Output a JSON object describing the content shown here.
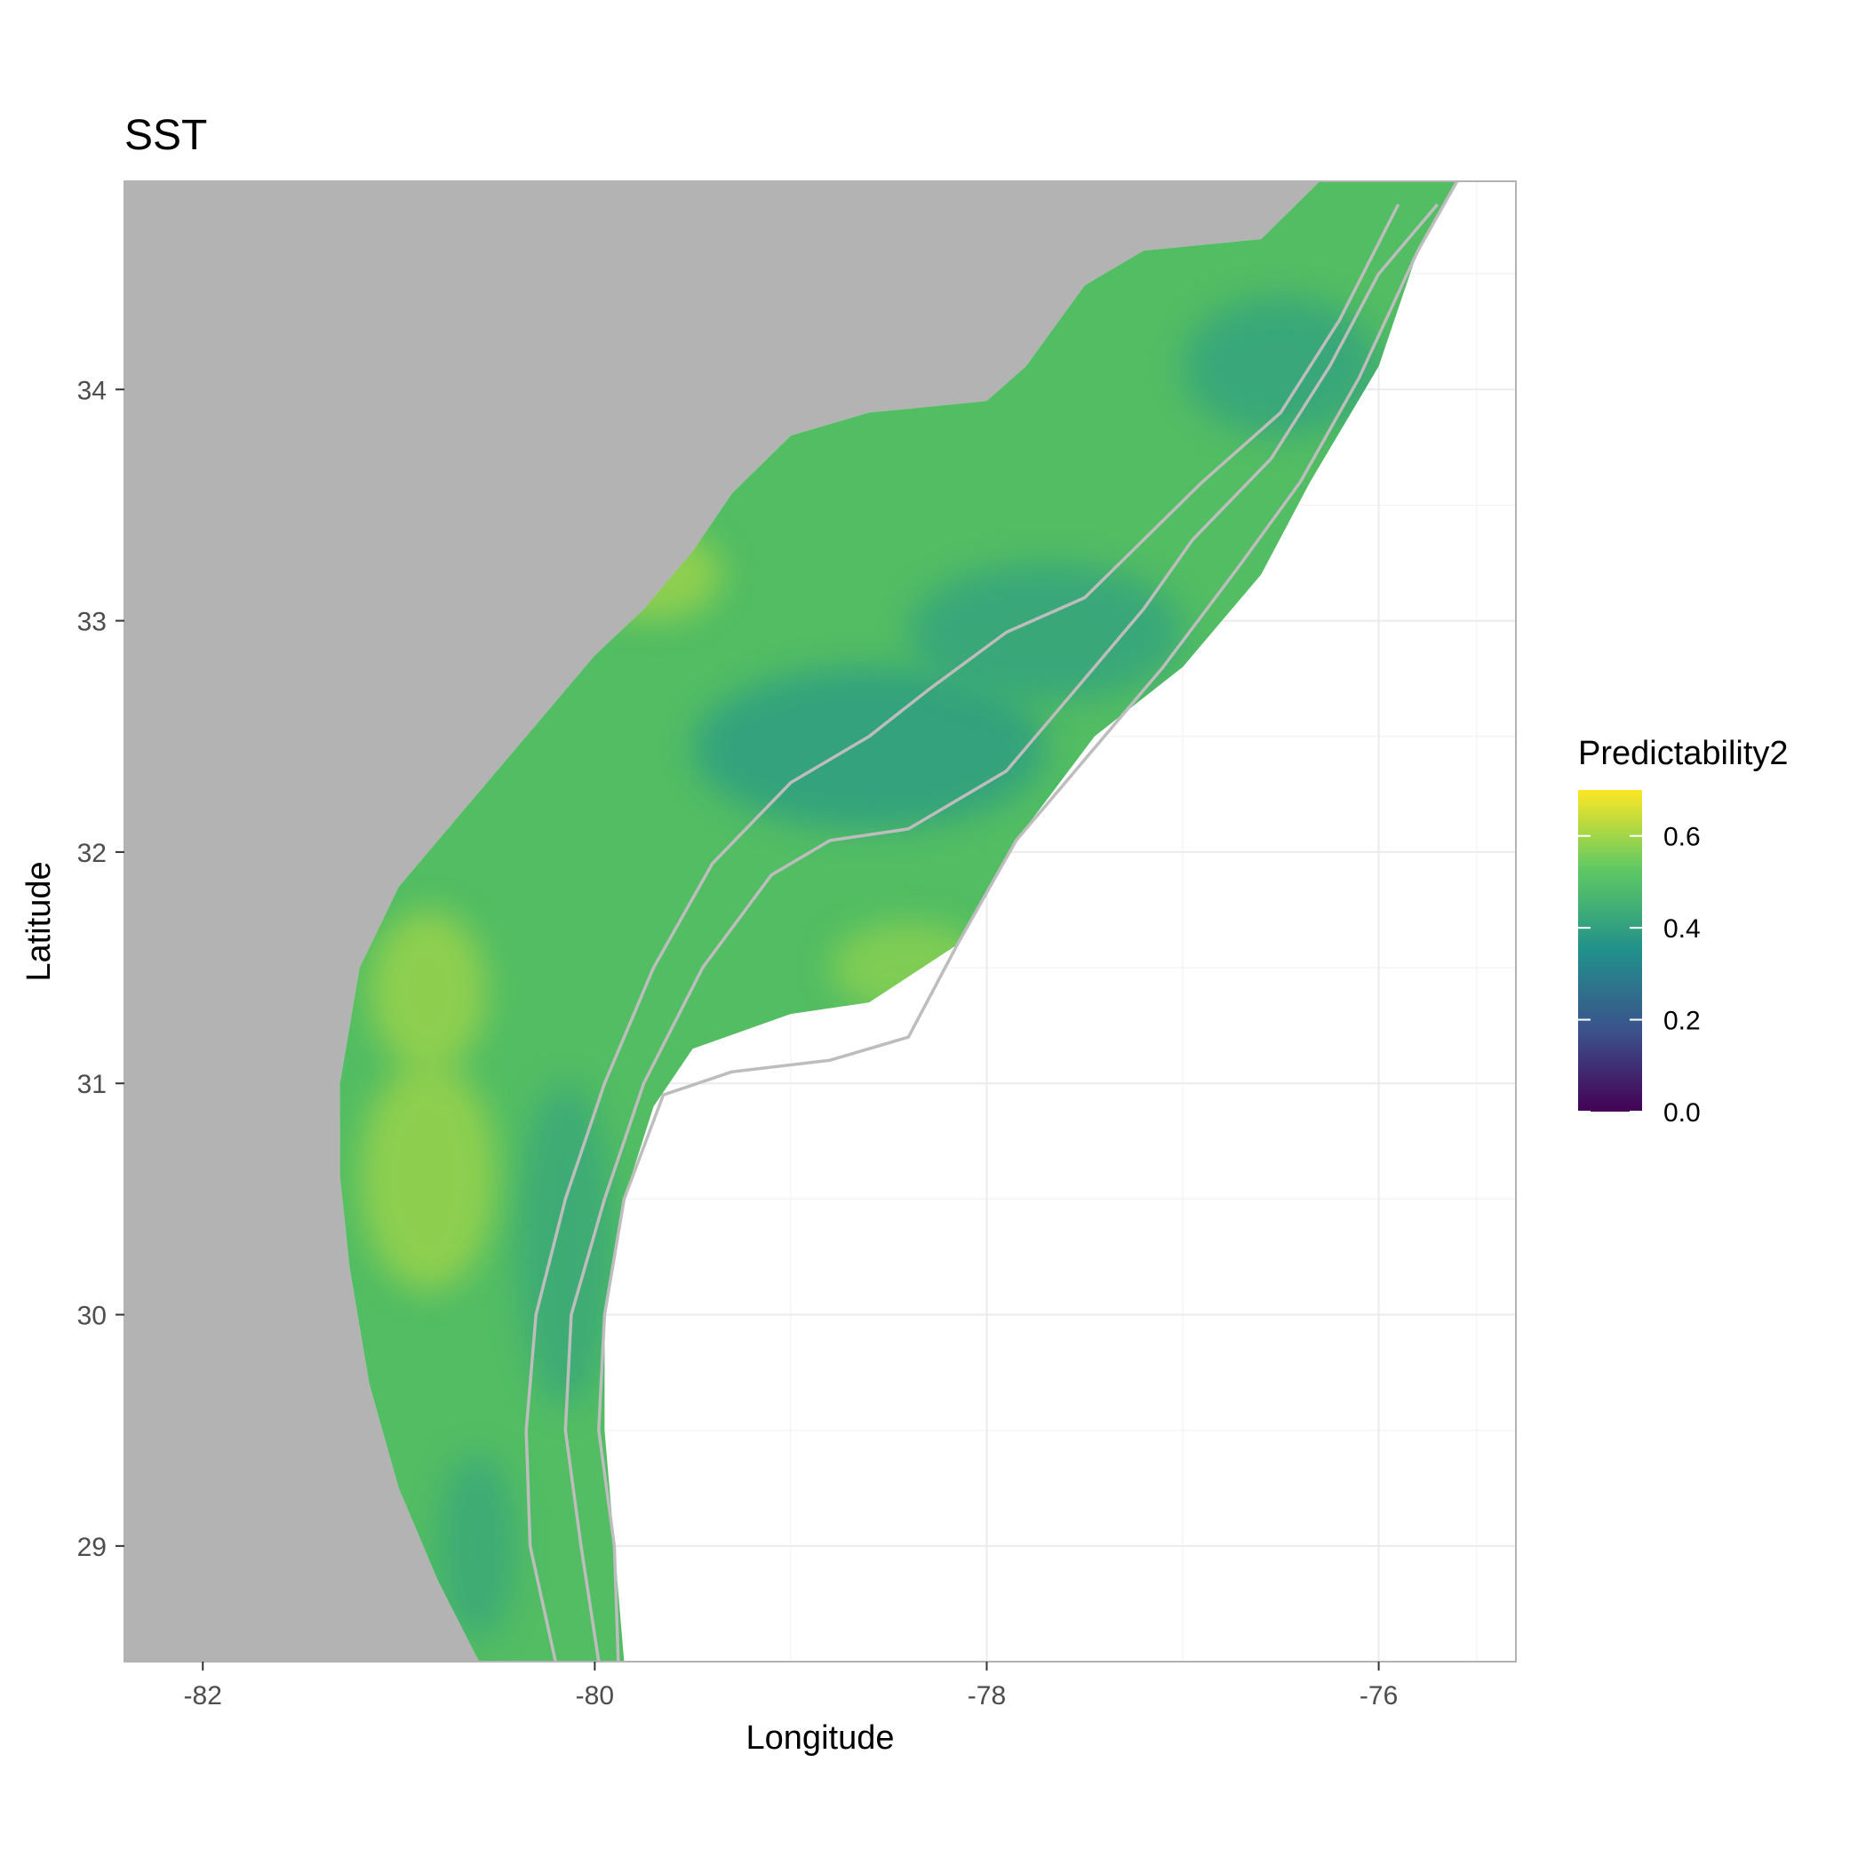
{
  "chart_data": {
    "type": "heatmap",
    "title": "SST",
    "xlabel": "Longitude",
    "ylabel": "Latitude",
    "xlim": [
      -82.4,
      -75.3
    ],
    "ylim": [
      28.5,
      34.9
    ],
    "x_ticks": [
      {
        "value": -82,
        "label": "-82"
      },
      {
        "value": -80,
        "label": "-80"
      },
      {
        "value": -78,
        "label": "-78"
      },
      {
        "value": -76,
        "label": "-76"
      }
    ],
    "y_ticks": [
      {
        "value": 29,
        "label": "29"
      },
      {
        "value": 30,
        "label": "30"
      },
      {
        "value": 31,
        "label": "31"
      },
      {
        "value": 32,
        "label": "32"
      },
      {
        "value": 33,
        "label": "33"
      },
      {
        "value": 34,
        "label": "34"
      }
    ],
    "minor_x": [
      -81,
      -79,
      -77,
      -75.5
    ],
    "minor_y": [
      29.5,
      30.5,
      31.5,
      32.5,
      33.5,
      34.5
    ],
    "grid": true,
    "legend": {
      "title": "Predictability2",
      "placement": "right",
      "range": [
        0.0,
        0.7
      ],
      "ticks": [
        {
          "value": 0.0,
          "label": "0.0"
        },
        {
          "value": 0.2,
          "label": "0.2"
        },
        {
          "value": 0.4,
          "label": "0.4"
        },
        {
          "value": 0.6,
          "label": "0.6"
        }
      ]
    },
    "colors": {
      "land": "#b3b3b3",
      "contour": "#bdbdbd",
      "grid": "#ebebeb",
      "panel_border": "#b3b3b3",
      "viridis": [
        "#440154",
        "#3b528b",
        "#21908c",
        "#5dc863",
        "#fde725"
      ]
    },
    "domain_outline": [
      [
        -80.59,
        28.5
      ],
      [
        -80.8,
        28.85
      ],
      [
        -81.0,
        29.25
      ],
      [
        -81.15,
        29.7
      ],
      [
        -81.25,
        30.2
      ],
      [
        -81.3,
        30.6
      ],
      [
        -81.3,
        31.0
      ],
      [
        -81.2,
        31.5
      ],
      [
        -81.0,
        31.85
      ],
      [
        -80.8,
        32.05
      ],
      [
        -80.6,
        32.25
      ],
      [
        -80.3,
        32.55
      ],
      [
        -80.0,
        32.85
      ],
      [
        -79.75,
        33.05
      ],
      [
        -79.5,
        33.3
      ],
      [
        -79.3,
        33.55
      ],
      [
        -79.0,
        33.8
      ],
      [
        -78.6,
        33.9
      ],
      [
        -78.0,
        33.95
      ],
      [
        -77.8,
        34.1
      ],
      [
        -77.5,
        34.45
      ],
      [
        -77.2,
        34.6
      ],
      [
        -76.6,
        34.65
      ],
      [
        -76.3,
        34.9
      ],
      [
        -75.6,
        34.9
      ],
      [
        -75.8,
        34.6
      ],
      [
        -76.0,
        34.1
      ],
      [
        -76.35,
        33.6
      ],
      [
        -76.6,
        33.2
      ],
      [
        -77.0,
        32.8
      ],
      [
        -77.45,
        32.5
      ],
      [
        -77.85,
        32.05
      ],
      [
        -78.15,
        31.6
      ],
      [
        -78.6,
        31.35
      ],
      [
        -79.0,
        31.3
      ],
      [
        -79.5,
        31.15
      ],
      [
        -79.7,
        30.9
      ],
      [
        -79.85,
        30.5
      ],
      [
        -79.95,
        30.0
      ],
      [
        -79.95,
        29.5
      ],
      [
        -79.9,
        29.0
      ],
      [
        -79.85,
        28.5
      ]
    ],
    "contours": [
      {
        "name": "inner-isobath",
        "points": [
          [
            -80.2,
            28.5
          ],
          [
            -80.33,
            29.0
          ],
          [
            -80.35,
            29.5
          ],
          [
            -80.3,
            30.0
          ],
          [
            -80.15,
            30.5
          ],
          [
            -79.95,
            31.0
          ],
          [
            -79.7,
            31.5
          ],
          [
            -79.4,
            31.95
          ],
          [
            -79.0,
            32.3
          ],
          [
            -78.6,
            32.5
          ],
          [
            -78.3,
            32.7
          ],
          [
            -77.9,
            32.95
          ],
          [
            -77.5,
            33.1
          ],
          [
            -77.2,
            33.35
          ],
          [
            -76.9,
            33.6
          ],
          [
            -76.5,
            33.9
          ],
          [
            -76.2,
            34.3
          ],
          [
            -75.9,
            34.8
          ]
        ]
      },
      {
        "name": "mid-isobath",
        "points": [
          [
            -79.98,
            28.5
          ],
          [
            -80.07,
            29.0
          ],
          [
            -80.15,
            29.5
          ],
          [
            -80.12,
            30.0
          ],
          [
            -79.95,
            30.5
          ],
          [
            -79.75,
            31.0
          ],
          [
            -79.45,
            31.5
          ],
          [
            -79.1,
            31.9
          ],
          [
            -78.8,
            32.05
          ],
          [
            -78.4,
            32.1
          ],
          [
            -77.9,
            32.35
          ],
          [
            -77.5,
            32.75
          ],
          [
            -77.2,
            33.05
          ],
          [
            -76.95,
            33.35
          ],
          [
            -76.55,
            33.7
          ],
          [
            -76.25,
            34.1
          ],
          [
            -76.0,
            34.5
          ],
          [
            -75.7,
            34.8
          ]
        ]
      },
      {
        "name": "outer-isobath",
        "points": [
          [
            -79.88,
            28.5
          ],
          [
            -79.9,
            29.0
          ],
          [
            -79.98,
            29.5
          ],
          [
            -79.95,
            30.0
          ],
          [
            -79.85,
            30.5
          ],
          [
            -79.65,
            30.95
          ],
          [
            -79.3,
            31.05
          ],
          [
            -78.8,
            31.1
          ],
          [
            -78.4,
            31.2
          ],
          [
            -78.15,
            31.6
          ],
          [
            -77.85,
            32.05
          ],
          [
            -77.5,
            32.4
          ],
          [
            -77.1,
            32.8
          ],
          [
            -76.7,
            33.25
          ],
          [
            -76.4,
            33.6
          ],
          [
            -76.1,
            34.05
          ],
          [
            -75.8,
            34.6
          ],
          [
            -75.6,
            34.9
          ]
        ]
      }
    ],
    "hotspots": [
      {
        "lon": -78.6,
        "lat": 32.45,
        "value": 0.38,
        "rx": 0.9,
        "ry": 0.35
      },
      {
        "lon": -77.7,
        "lat": 32.95,
        "value": 0.4,
        "rx": 0.7,
        "ry": 0.3
      },
      {
        "lon": -76.5,
        "lat": 34.1,
        "value": 0.4,
        "rx": 0.5,
        "ry": 0.3
      },
      {
        "lon": -80.15,
        "lat": 30.3,
        "value": 0.42,
        "rx": 0.25,
        "ry": 0.7
      },
      {
        "lon": -80.85,
        "lat": 30.6,
        "value": 0.6,
        "rx": 0.35,
        "ry": 0.5
      },
      {
        "lon": -80.85,
        "lat": 31.4,
        "value": 0.6,
        "rx": 0.3,
        "ry": 0.35
      },
      {
        "lon": -79.7,
        "lat": 33.2,
        "value": 0.6,
        "rx": 0.35,
        "ry": 0.2
      },
      {
        "lon": -78.4,
        "lat": 31.5,
        "value": 0.58,
        "rx": 0.4,
        "ry": 0.2
      },
      {
        "lon": -80.6,
        "lat": 29.0,
        "value": 0.42,
        "rx": 0.2,
        "ry": 0.4
      }
    ]
  }
}
